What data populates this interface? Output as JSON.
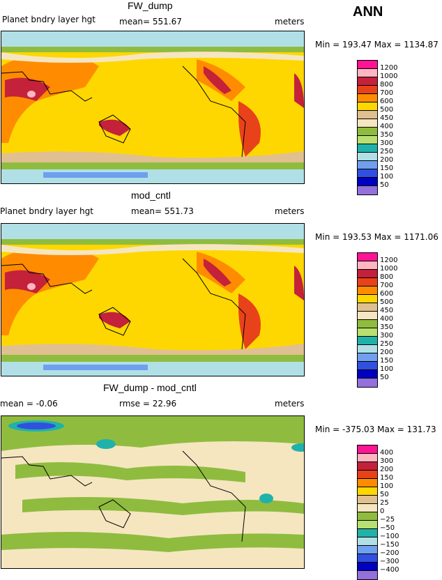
{
  "header": {
    "season": "ANN"
  },
  "panels": [
    {
      "title": "FW_dump",
      "left_label": "Planet bndry layer hgt",
      "mid_label": "mean= 551.67",
      "right_label": "meters",
      "minmax": "Min = 193.47 Max = 1134.87",
      "colors": [
        "#ff1493",
        "#ffb6c1",
        "#c4213a",
        "#e8421b",
        "#ff8c00",
        "#ffd700",
        "#e0c090",
        "#f5e6c0",
        "#8fbc3f",
        "#b8e070",
        "#20b2aa",
        "#b0e0e6",
        "#6fa0ee",
        "#3050e0",
        "#0000c0",
        "#9370db"
      ],
      "ticks": [
        "1200",
        "1000",
        "800",
        "700",
        "600",
        "500",
        "450",
        "400",
        "350",
        "300",
        "250",
        "200",
        "150",
        "100",
        "50"
      ]
    },
    {
      "title": "mod_cntl",
      "left_label": "Planet bndry layer hgt",
      "mid_label": "mean= 551.73",
      "right_label": "meters",
      "minmax": "Min = 193.53 Max = 1171.06",
      "colors": [
        "#ff1493",
        "#ffb6c1",
        "#c4213a",
        "#e8421b",
        "#ff8c00",
        "#ffd700",
        "#e0c090",
        "#f5e6c0",
        "#8fbc3f",
        "#b8e070",
        "#20b2aa",
        "#b0e0e6",
        "#6fa0ee",
        "#3050e0",
        "#0000c0",
        "#9370db"
      ],
      "ticks": [
        "1200",
        "1000",
        "800",
        "700",
        "600",
        "500",
        "450",
        "400",
        "350",
        "300",
        "250",
        "200",
        "150",
        "100",
        "50"
      ]
    },
    {
      "title": "FW_dump - mod_cntl",
      "left_label": "mean =  -0.06",
      "mid_label": "rmse =  22.96",
      "right_label": "meters",
      "minmax": "Min = -375.03 Max = 131.73",
      "colors": [
        "#ff1493",
        "#ffb6c1",
        "#c4213a",
        "#e8421b",
        "#ff8c00",
        "#ffd700",
        "#e0c090",
        "#f5e6c0",
        "#8fbc3f",
        "#b8e070",
        "#20b2aa",
        "#b0e0e6",
        "#6fa0ee",
        "#3050e0",
        "#0000c0",
        "#9370db"
      ],
      "ticks": [
        "400",
        "300",
        "200",
        "150",
        "100",
        "50",
        "25",
        "0",
        "−25",
        "−50",
        "−100",
        "−150",
        "−200",
        "−300",
        "−400"
      ]
    }
  ]
}
